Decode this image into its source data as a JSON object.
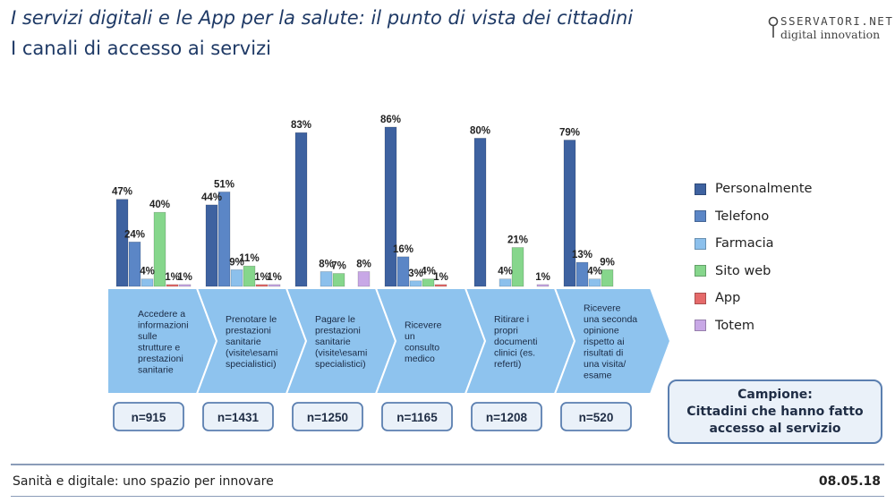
{
  "header": {
    "title": "I servizi digitali e le App per la salute: il punto di vista dei cittadini",
    "subtitle": "I canali di accesso ai servizi"
  },
  "logo": {
    "line1": "SSERVATORI.NET",
    "line2": "digital innovation"
  },
  "chart_data": {
    "type": "bar",
    "categories": [
      "Accedere a informazioni sulle strutture e prestazioni sanitarie",
      "Prenotare le prestazioni sanitarie (visite\\esami specialistici)",
      "Pagare le prestazioni sanitarie (visite\\esami specialistici)",
      "Ricevere un consulto medico",
      "Ritirare i propri documenti clinici (es. referti)",
      "Ricevere una seconda opinione rispetto ai risultati di una visita/ esame"
    ],
    "category_lines": [
      [
        "Accedere a",
        "informazioni",
        "sulle",
        "strutture e",
        "prestazioni",
        "sanitarie"
      ],
      [
        "Prenotare le",
        "prestazioni",
        "sanitarie",
        "(visite\\esami",
        "specialistici)"
      ],
      [
        "Pagare le",
        "prestazioni",
        "sanitarie",
        "(visite\\esami",
        "specialistici)"
      ],
      [
        "Ricevere",
        "un",
        "consulto",
        "medico"
      ],
      [
        "Ritirare i",
        "propri",
        "documenti",
        "clinici (es.",
        "referti)"
      ],
      [
        "Ricevere",
        "una seconda",
        "opinione",
        "rispetto ai",
        "risultati di",
        "una visita/",
        "esame"
      ]
    ],
    "sample_sizes": [
      "n=915",
      "n=1431",
      "n=1250",
      "n=1165",
      "n=1208",
      "n=520"
    ],
    "series": [
      {
        "name": "Personalmente",
        "color": "#3e62a0",
        "values": [
          47,
          44,
          83,
          86,
          80,
          79
        ],
        "labels": [
          "47%",
          "44%",
          "83%",
          "86%",
          "80%",
          "79%"
        ]
      },
      {
        "name": "Telefono",
        "color": "#5b86c6",
        "values": [
          24,
          51,
          0,
          16,
          0,
          13
        ],
        "labels": [
          "24%",
          "51%",
          "",
          "16%",
          "",
          "13%"
        ]
      },
      {
        "name": "Farmacia",
        "color": "#8cc0ec",
        "values": [
          4,
          9,
          8,
          3,
          4,
          4
        ],
        "labels": [
          "4%",
          "9%",
          "8%",
          "3%",
          "4%",
          "4%"
        ]
      },
      {
        "name": "Sito web",
        "color": "#86d68c",
        "values": [
          40,
          11,
          7,
          4,
          21,
          9
        ],
        "labels": [
          "40%",
          "11%",
          "7%",
          "4%",
          "21%",
          "9%"
        ]
      },
      {
        "name": "App",
        "color": "#e56a6a",
        "values": [
          1,
          1,
          0,
          1,
          0,
          0
        ],
        "labels": [
          "1%",
          "1%",
          "",
          "1%",
          "",
          ""
        ]
      },
      {
        "name": "Totem",
        "color": "#c8a8e6",
        "values": [
          1,
          1,
          8,
          0,
          1,
          0
        ],
        "labels": [
          "1%",
          "1%",
          "8%",
          "",
          "1%",
          ""
        ]
      }
    ],
    "ylim": [
      0,
      100
    ],
    "legend_position": "right",
    "grid": false
  },
  "sample_box": {
    "line1": "Campione:",
    "line2": "Cittadini che hanno fatto",
    "line3": "accesso al servizio"
  },
  "footer": {
    "left": "Sanità e digitale: uno spazio per innovare",
    "right": "08.05.18"
  }
}
